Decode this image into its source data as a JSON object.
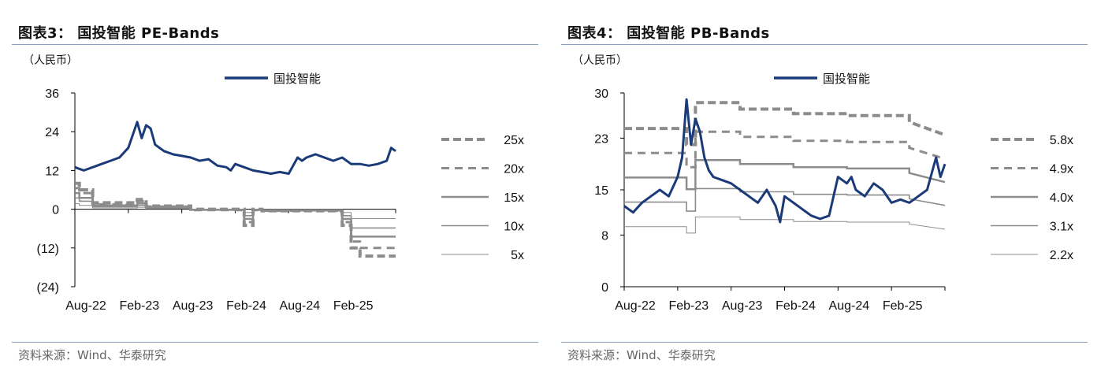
{
  "colors": {
    "stock_line": "#1b3a78",
    "band_line": "#8c8c8c",
    "axis": "#000000"
  },
  "panels": [
    {
      "title": "图表3：  国投智能 PE-Bands",
      "unit": "（人民币）",
      "source": "资料来源：Wind、华泰研究"
    },
    {
      "title": "图表4：  国投智能 PB-Bands",
      "unit": "（人民币）",
      "source": "资料来源：Wind、华泰研究"
    }
  ],
  "chart_data": [
    {
      "type": "line",
      "title": "国投智能 PE-Bands",
      "ylabel": "（人民币）",
      "ylim": [
        -24,
        36
      ],
      "yticks": [
        -24,
        -12,
        0,
        12,
        24,
        36
      ],
      "ytick_labels": [
        "(24)",
        "(12)",
        "0",
        "12",
        "24",
        "36"
      ],
      "xlim": [
        0,
        36
      ],
      "xticks": [
        0,
        6,
        12,
        18,
        24,
        30
      ],
      "xtick_labels": [
        "Aug-22",
        "Feb-23",
        "Aug-23",
        "Feb-24",
        "Aug-24",
        "Feb-25"
      ],
      "legend_position": "top-center, bands listed at right",
      "stock": {
        "name": "国投智能",
        "x": [
          0,
          1,
          2,
          3,
          4,
          5,
          6,
          7,
          7.5,
          8,
          8.5,
          9,
          9.5,
          10,
          11,
          12,
          13,
          14,
          15,
          16,
          17,
          17.5,
          18,
          19,
          20,
          21,
          22,
          23,
          24,
          25,
          25.5,
          26,
          27,
          28,
          29,
          30,
          31,
          32,
          33,
          34,
          35,
          35.5,
          36
        ],
        "y": [
          13,
          12,
          13,
          14,
          15,
          16,
          19,
          27,
          22,
          26,
          25,
          20,
          19,
          18,
          17,
          16.5,
          16,
          15,
          15.5,
          13.5,
          13,
          12,
          14,
          13,
          12,
          11.5,
          11,
          11.5,
          11,
          16,
          15,
          16,
          17,
          16,
          15,
          16,
          14,
          14,
          13.5,
          14,
          15,
          19,
          18
        ]
      },
      "bands": [
        {
          "name": "25x",
          "style": "dashed-thick",
          "x": [
            0,
            0.5,
            0.5,
            2,
            2,
            7,
            7,
            8,
            8,
            13,
            13,
            19,
            19,
            20,
            20,
            21,
            21,
            30,
            30,
            31,
            31,
            32,
            32,
            36
          ],
          "y": [
            8,
            8,
            6,
            6,
            2,
            2,
            3,
            3,
            1,
            1,
            0,
            0,
            -5,
            -5,
            0,
            0,
            -0.5,
            -0.5,
            -5,
            -5,
            -12,
            -12,
            -14.5,
            -14.5
          ]
        },
        {
          "name": "20x",
          "style": "dashed",
          "x": [
            0,
            0.5,
            0.5,
            2,
            2,
            7,
            7,
            8,
            8,
            13,
            13,
            19,
            19,
            20,
            20,
            21,
            21,
            30,
            30,
            31,
            31,
            32,
            32,
            36
          ],
          "y": [
            6.5,
            6.5,
            5,
            5,
            1.5,
            1.5,
            2.5,
            2.5,
            0.8,
            0.8,
            -0.3,
            -0.3,
            -4,
            -4,
            -0.3,
            -0.3,
            -0.5,
            -0.5,
            -4,
            -4,
            -10,
            -10,
            -12,
            -12
          ]
        },
        {
          "name": "15x",
          "style": "solid-medium",
          "x": [
            0,
            0.5,
            0.5,
            2,
            2,
            7,
            7,
            8,
            8,
            13,
            13,
            19,
            19,
            20,
            20,
            21,
            21,
            30,
            30,
            31,
            31,
            36
          ],
          "y": [
            5,
            5,
            3.5,
            3.5,
            1.2,
            1.2,
            1.8,
            1.8,
            0.6,
            0.6,
            -0.2,
            -0.2,
            -3,
            -3,
            -0.2,
            -0.2,
            -0.4,
            -0.4,
            -3,
            -3,
            -8.5,
            -8.5
          ]
        },
        {
          "name": "10x",
          "style": "solid",
          "x": [
            0,
            0.5,
            0.5,
            2,
            2,
            7,
            7,
            8,
            8,
            13,
            13,
            19,
            19,
            20,
            20,
            21,
            21,
            30,
            30,
            31,
            31,
            36
          ],
          "y": [
            3.5,
            3.5,
            2.5,
            2.5,
            0.8,
            0.8,
            1.2,
            1.2,
            0.4,
            0.4,
            -0.1,
            -0.1,
            -2,
            -2,
            -0.1,
            -0.1,
            -0.3,
            -0.3,
            -2,
            -2,
            -5.8,
            -5.8
          ]
        },
        {
          "name": "5x",
          "style": "solid-thin",
          "x": [
            0,
            0.5,
            0.5,
            2,
            2,
            7,
            7,
            8,
            8,
            13,
            13,
            19,
            19,
            20,
            20,
            21,
            21,
            30,
            30,
            31,
            31,
            36
          ],
          "y": [
            1.7,
            1.7,
            1.2,
            1.2,
            0.4,
            0.4,
            0.6,
            0.6,
            0.2,
            0.2,
            0,
            0,
            -1,
            -1,
            0,
            0,
            -0.1,
            -0.1,
            -1,
            -1,
            -2.9,
            -2.9
          ]
        }
      ]
    },
    {
      "type": "line",
      "title": "国投智能 PB-Bands",
      "ylabel": "（人民币）",
      "ylim": [
        0,
        30
      ],
      "yticks": [
        0,
        8,
        15,
        23,
        30
      ],
      "ytick_labels": [
        "0",
        "8",
        "15",
        "23",
        "30"
      ],
      "xlim": [
        0,
        36
      ],
      "xticks": [
        0,
        6,
        12,
        18,
        24,
        30
      ],
      "xtick_labels": [
        "Aug-22",
        "Feb-23",
        "Aug-23",
        "Feb-24",
        "Aug-24",
        "Feb-25"
      ],
      "legend_position": "top-center, bands listed at right",
      "stock": {
        "name": "国投智能",
        "x": [
          0,
          1,
          2,
          3,
          4,
          5,
          6,
          6.5,
          7,
          7.5,
          8,
          8.5,
          9,
          9.5,
          10,
          11,
          12,
          13,
          14,
          15,
          16,
          17,
          17.5,
          18,
          19,
          20,
          21,
          22,
          23,
          24,
          25,
          25.5,
          26,
          27,
          28,
          29,
          30,
          31,
          32,
          33,
          34,
          35,
          35.5,
          36
        ],
        "y": [
          12.5,
          11.5,
          13,
          14,
          15,
          14,
          17,
          20,
          29,
          22,
          26,
          24,
          20,
          18,
          17,
          16.5,
          16,
          15,
          14,
          13,
          15,
          12.5,
          10,
          14,
          13,
          12,
          11,
          10.5,
          11,
          17,
          16,
          17,
          15,
          14,
          16,
          15,
          13,
          13.5,
          13,
          14,
          15,
          20,
          17,
          19
        ]
      },
      "bands": [
        {
          "name": "5.8x",
          "style": "dashed-thick",
          "x": [
            0,
            7,
            7,
            8,
            8,
            13,
            13,
            19,
            19,
            25,
            25,
            32,
            32,
            36
          ],
          "y": [
            24.5,
            24.5,
            22,
            22,
            28.5,
            28.5,
            27.5,
            27.5,
            26.8,
            26.8,
            26.5,
            26.5,
            25.5,
            23.5
          ]
        },
        {
          "name": "4.9x",
          "style": "dashed",
          "x": [
            0,
            7,
            7,
            8,
            8,
            13,
            13,
            19,
            19,
            25,
            25,
            32,
            32,
            36
          ],
          "y": [
            20.7,
            20.7,
            18.5,
            18.5,
            24,
            24,
            23.2,
            23.2,
            22.6,
            22.6,
            22.4,
            22.4,
            21.5,
            19.8
          ]
        },
        {
          "name": "4.0x",
          "style": "solid-medium",
          "x": [
            0,
            7,
            7,
            8,
            8,
            13,
            13,
            19,
            19,
            25,
            25,
            32,
            32,
            36
          ],
          "y": [
            16.9,
            16.9,
            15.1,
            15.1,
            19.6,
            19.6,
            19,
            19,
            18.5,
            18.5,
            18.3,
            18.3,
            17.6,
            16.2
          ]
        },
        {
          "name": "3.1x",
          "style": "solid",
          "x": [
            0,
            7,
            7,
            8,
            8,
            13,
            13,
            19,
            19,
            25,
            25,
            32,
            32,
            36
          ],
          "y": [
            13.1,
            13.1,
            11.7,
            11.7,
            15.2,
            15.2,
            14.7,
            14.7,
            14.3,
            14.3,
            14.2,
            14.2,
            13.6,
            12.6
          ]
        },
        {
          "name": "2.2x",
          "style": "solid-thin",
          "x": [
            0,
            7,
            7,
            8,
            8,
            13,
            13,
            19,
            19,
            25,
            25,
            32,
            32,
            36
          ],
          "y": [
            9.3,
            9.3,
            8.3,
            8.3,
            10.8,
            10.8,
            10.4,
            10.4,
            10.1,
            10.1,
            10,
            10,
            9.7,
            8.9
          ]
        }
      ]
    }
  ]
}
